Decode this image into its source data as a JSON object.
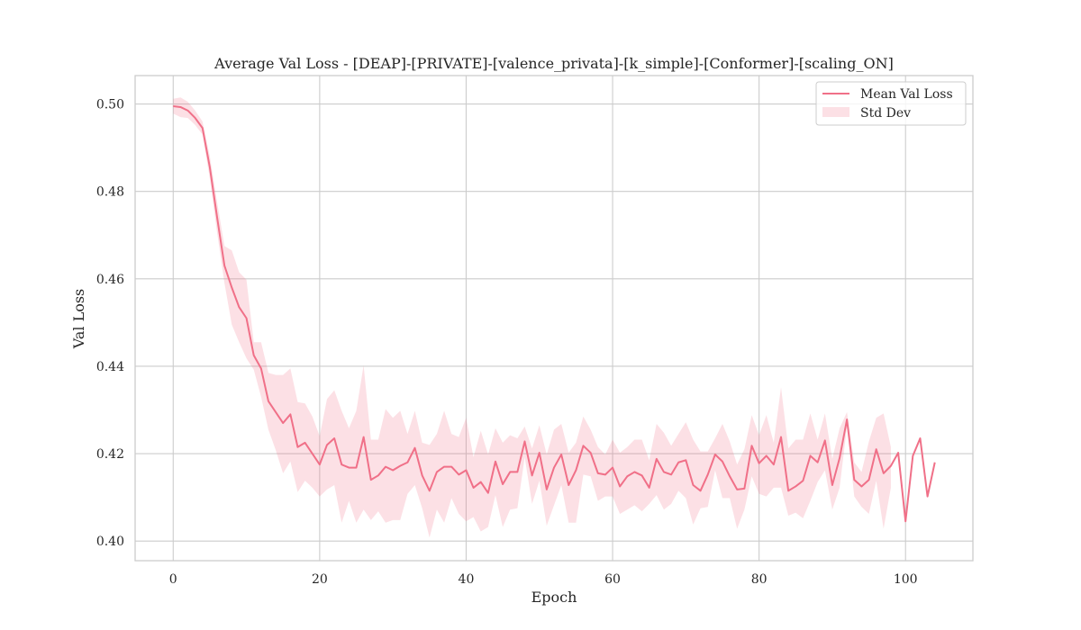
{
  "chart_data": {
    "type": "line",
    "title": "Average Val Loss - [DEAP]-[PRIVATE]-[valence_privata]-[k_simple]-[Conformer]-[scaling_ON]",
    "xlabel": "Epoch",
    "ylabel": "Val Loss",
    "xlim": [
      -5.2,
      109.2
    ],
    "ylim": [
      0.3955,
      0.5065
    ],
    "x_ticks": [
      0,
      20,
      40,
      60,
      80,
      100
    ],
    "y_ticks": [
      0.4,
      0.42,
      0.44,
      0.46,
      0.48,
      0.5
    ],
    "x_tick_labels": [
      "0",
      "20",
      "40",
      "60",
      "80",
      "100"
    ],
    "y_tick_labels": [
      "0.40",
      "0.42",
      "0.44",
      "0.46",
      "0.48",
      "0.50"
    ],
    "grid": true,
    "legend_position": "top-right",
    "series": [
      {
        "name": "Mean Val Loss",
        "color": "#f07088",
        "x": [
          0,
          1,
          2,
          3,
          4,
          5,
          6,
          7,
          8,
          9,
          10,
          11,
          12,
          13,
          14,
          15,
          16,
          17,
          18,
          19,
          20,
          21,
          22,
          23,
          24,
          25,
          26,
          27,
          28,
          29,
          30,
          31,
          32,
          33,
          34,
          35,
          36,
          37,
          38,
          39,
          40,
          41,
          42,
          43,
          44,
          45,
          46,
          47,
          48,
          49,
          50,
          51,
          52,
          53,
          54,
          55,
          56,
          57,
          58,
          59,
          60,
          61,
          62,
          63,
          64,
          65,
          66,
          67,
          68,
          69,
          70,
          71,
          72,
          73,
          74,
          75,
          76,
          77,
          78,
          79,
          80,
          81,
          82,
          83,
          84,
          85,
          86,
          87,
          88,
          89,
          90,
          91,
          92,
          93,
          94,
          95,
          96,
          97,
          98,
          99,
          100,
          101,
          102,
          103,
          104
        ],
        "values": [
          0.4995,
          0.4993,
          0.4985,
          0.4968,
          0.4945,
          0.4855,
          0.474,
          0.463,
          0.458,
          0.4535,
          0.451,
          0.4425,
          0.4395,
          0.432,
          0.4295,
          0.427,
          0.429,
          0.4215,
          0.4225,
          0.42,
          0.4175,
          0.422,
          0.4235,
          0.4175,
          0.4168,
          0.4168,
          0.4238,
          0.414,
          0.415,
          0.417,
          0.4162,
          0.4172,
          0.418,
          0.4213,
          0.415,
          0.4115,
          0.4158,
          0.417,
          0.417,
          0.4152,
          0.4162,
          0.4122,
          0.4135,
          0.411,
          0.4182,
          0.413,
          0.4158,
          0.4158,
          0.4228,
          0.415,
          0.4202,
          0.4118,
          0.4168,
          0.4198,
          0.4128,
          0.4162,
          0.4218,
          0.4202,
          0.4155,
          0.4152,
          0.4168,
          0.4125,
          0.4148,
          0.4158,
          0.415,
          0.4122,
          0.4188,
          0.4158,
          0.4152,
          0.418,
          0.4185,
          0.4128,
          0.4115,
          0.4152,
          0.4198,
          0.4182,
          0.4148,
          0.4118,
          0.412,
          0.4218,
          0.4178,
          0.4195,
          0.4175,
          0.4238,
          0.4115,
          0.4125,
          0.4138,
          0.4195,
          0.418,
          0.423,
          0.4128,
          0.419,
          0.4278,
          0.414,
          0.4125,
          0.414,
          0.421,
          0.4155,
          0.4172,
          0.4202,
          0.4045,
          0.4195,
          0.4235,
          0.4102,
          0.418
        ]
      }
    ],
    "std_band": {
      "name": "Std Dev",
      "color": "#f07088",
      "x": [
        0,
        1,
        2,
        3,
        4,
        5,
        6,
        7,
        8,
        9,
        10,
        11,
        12,
        13,
        14,
        15,
        16,
        17,
        18,
        19,
        20,
        21,
        22,
        23,
        24,
        25,
        26,
        27,
        28,
        29,
        30,
        31,
        32,
        33,
        34,
        35,
        36,
        37,
        38,
        39,
        40,
        41,
        42,
        43,
        44,
        45,
        46,
        47,
        48,
        49,
        50,
        51,
        52,
        53,
        54,
        55,
        56,
        57,
        58,
        59,
        60,
        61,
        62,
        63,
        64,
        65,
        66,
        67,
        68,
        69,
        70,
        71,
        72,
        73,
        74,
        75,
        76,
        77,
        78,
        79,
        80,
        81,
        82,
        83,
        84,
        85,
        86,
        87,
        88,
        89,
        90,
        91,
        92,
        93,
        94,
        95,
        96,
        97,
        98
      ],
      "upper": [
        0.5012,
        0.5015,
        0.5005,
        0.4985,
        0.496,
        0.488,
        0.4775,
        0.4675,
        0.4665,
        0.4615,
        0.4598,
        0.4455,
        0.4455,
        0.4385,
        0.438,
        0.438,
        0.4395,
        0.4318,
        0.4315,
        0.4285,
        0.424,
        0.4325,
        0.4345,
        0.4298,
        0.4258,
        0.4298,
        0.4402,
        0.4232,
        0.4232,
        0.4302,
        0.4282,
        0.4298,
        0.4245,
        0.4298,
        0.4225,
        0.422,
        0.4245,
        0.4298,
        0.4245,
        0.4238,
        0.4282,
        0.4192,
        0.4252,
        0.4198,
        0.4258,
        0.4225,
        0.4242,
        0.4235,
        0.4262,
        0.4212,
        0.4265,
        0.4198,
        0.4255,
        0.4268,
        0.4202,
        0.4225,
        0.4285,
        0.4255,
        0.4215,
        0.4198,
        0.4232,
        0.4202,
        0.4215,
        0.4232,
        0.4232,
        0.4185,
        0.4268,
        0.4248,
        0.4218,
        0.4245,
        0.4272,
        0.4232,
        0.4205,
        0.4205,
        0.4235,
        0.4268,
        0.4228,
        0.4175,
        0.421,
        0.4288,
        0.4242,
        0.4288,
        0.4225,
        0.4352,
        0.4212,
        0.4232,
        0.4232,
        0.4292,
        0.4232,
        0.4292,
        0.4188,
        0.4258,
        0.4295,
        0.418,
        0.4158,
        0.4228,
        0.4282,
        0.4292,
        0.4215
      ],
      "lower": [
        0.4978,
        0.497,
        0.4968,
        0.4952,
        0.493,
        0.483,
        0.4705,
        0.459,
        0.4495,
        0.4455,
        0.4418,
        0.4392,
        0.433,
        0.4255,
        0.4208,
        0.4155,
        0.4182,
        0.4112,
        0.4138,
        0.4122,
        0.4102,
        0.4118,
        0.4128,
        0.4042,
        0.4092,
        0.4042,
        0.4072,
        0.4048,
        0.4068,
        0.4042,
        0.4048,
        0.4048,
        0.4108,
        0.4128,
        0.4075,
        0.4008,
        0.4072,
        0.4042,
        0.4098,
        0.4062,
        0.4045,
        0.4055,
        0.4022,
        0.4032,
        0.4105,
        0.4032,
        0.4072,
        0.4075,
        0.4192,
        0.4085,
        0.4138,
        0.4035,
        0.4082,
        0.4128,
        0.4042,
        0.4042,
        0.4152,
        0.4148,
        0.4092,
        0.4102,
        0.4102,
        0.4062,
        0.4072,
        0.4082,
        0.4068,
        0.4085,
        0.4105,
        0.4072,
        0.4085,
        0.4115,
        0.4098,
        0.4038,
        0.4075,
        0.4078,
        0.4162,
        0.4098,
        0.4098,
        0.4028,
        0.4072,
        0.4148,
        0.4108,
        0.4102,
        0.4122,
        0.4122,
        0.4058,
        0.4065,
        0.4052,
        0.4092,
        0.4135,
        0.4162,
        0.4072,
        0.4122,
        0.4262,
        0.4102,
        0.4078,
        0.4062,
        0.4138,
        0.4028,
        0.4122
      ]
    }
  }
}
